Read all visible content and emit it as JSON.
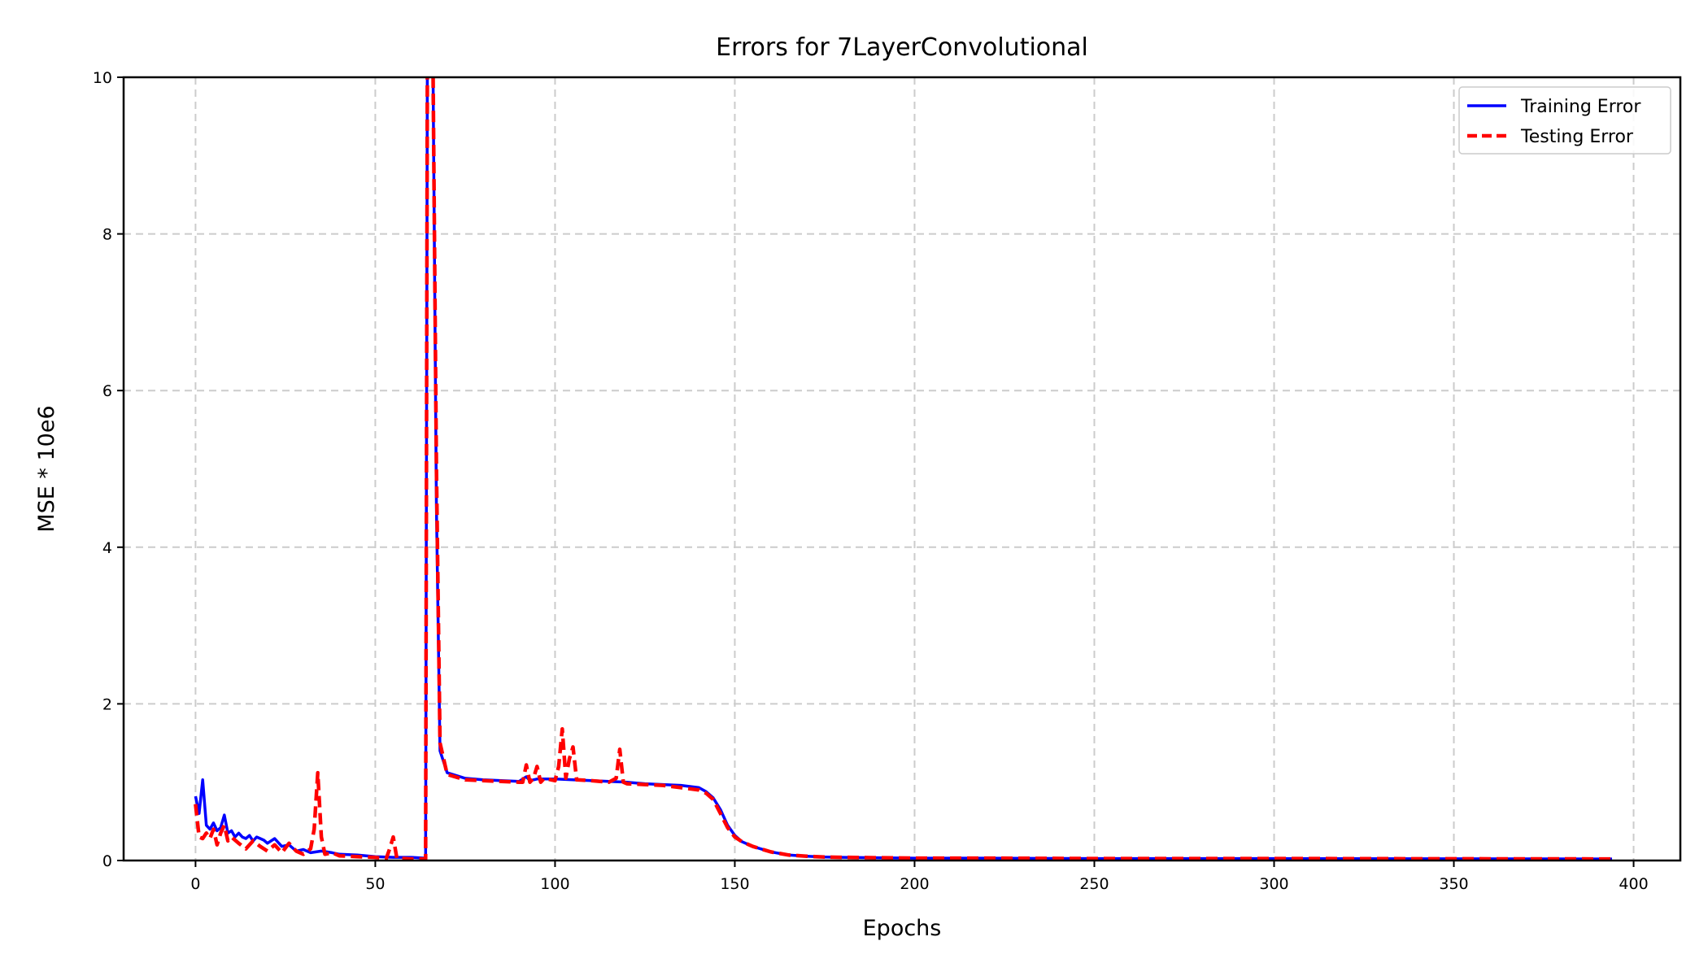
{
  "chart_data": {
    "type": "line",
    "title": "Errors for 7LayerConvolutional",
    "xlabel": "Epochs",
    "ylabel": "MSE * 10e6",
    "xlim": [
      -20,
      413
    ],
    "ylim": [
      0,
      10
    ],
    "xticks": [
      0,
      50,
      100,
      150,
      200,
      250,
      300,
      350,
      400
    ],
    "yticks": [
      0,
      2,
      4,
      6,
      8,
      10
    ],
    "grid": true,
    "legend_position": "top-right",
    "series": [
      {
        "name": "Training Error",
        "color": "#0000ff",
        "style": "solid",
        "x": [
          0,
          1,
          2,
          3,
          4,
          5,
          6,
          7,
          8,
          9,
          10,
          11,
          12,
          13,
          14,
          15,
          16,
          17,
          18,
          19,
          20,
          22,
          24,
          26,
          28,
          30,
          32,
          35,
          38,
          40,
          45,
          50,
          55,
          60,
          64,
          64.5,
          65,
          66,
          67,
          68,
          70,
          75,
          80,
          85,
          90,
          92,
          93,
          95,
          100,
          105,
          110,
          115,
          120,
          125,
          130,
          135,
          140,
          142,
          144,
          146,
          148,
          150,
          152,
          155,
          160,
          165,
          170,
          175,
          180,
          190,
          200,
          220,
          250,
          300,
          350,
          394
        ],
        "y": [
          0.82,
          0.6,
          1.03,
          0.45,
          0.4,
          0.48,
          0.38,
          0.42,
          0.58,
          0.35,
          0.38,
          0.3,
          0.35,
          0.3,
          0.28,
          0.32,
          0.25,
          0.3,
          0.28,
          0.26,
          0.22,
          0.28,
          0.18,
          0.2,
          0.12,
          0.14,
          0.1,
          0.12,
          0.1,
          0.08,
          0.07,
          0.05,
          0.04,
          0.04,
          0.03,
          10.5,
          10.5,
          10.5,
          4.5,
          1.4,
          1.12,
          1.05,
          1.03,
          1.02,
          1.01,
          1.07,
          1.02,
          1.04,
          1.04,
          1.03,
          1.02,
          1.01,
          1.0,
          0.98,
          0.97,
          0.96,
          0.93,
          0.88,
          0.8,
          0.65,
          0.45,
          0.32,
          0.24,
          0.18,
          0.11,
          0.07,
          0.055,
          0.045,
          0.04,
          0.035,
          0.03,
          0.03,
          0.025,
          0.025,
          0.022,
          0.02
        ]
      },
      {
        "name": "Testing Error",
        "color": "#ff0000",
        "style": "dashed",
        "x": [
          0,
          1,
          2,
          3,
          4,
          5,
          6,
          7,
          8,
          9,
          10,
          12,
          14,
          16,
          18,
          20,
          22,
          24,
          26,
          28,
          30,
          32,
          33,
          34,
          35,
          36,
          38,
          40,
          45,
          50,
          53,
          54,
          55,
          56,
          60,
          64,
          64.5,
          65,
          66,
          67,
          68,
          70,
          75,
          80,
          85,
          90,
          91,
          92,
          93,
          94,
          95,
          96,
          97,
          100,
          101,
          102,
          103,
          104,
          105,
          106,
          110,
          115,
          117,
          118,
          119,
          120,
          125,
          130,
          135,
          140,
          142,
          144,
          146,
          148,
          150,
          152,
          155,
          160,
          165,
          170,
          175,
          180,
          190,
          200,
          220,
          250,
          300,
          350,
          394
        ],
        "y": [
          0.72,
          0.3,
          0.28,
          0.35,
          0.28,
          0.4,
          0.2,
          0.35,
          0.45,
          0.25,
          0.3,
          0.22,
          0.15,
          0.25,
          0.18,
          0.12,
          0.2,
          0.1,
          0.22,
          0.12,
          0.08,
          0.15,
          0.4,
          1.12,
          0.3,
          0.08,
          0.1,
          0.06,
          0.05,
          0.04,
          0.02,
          0.15,
          0.3,
          0.03,
          0.02,
          0.02,
          10.5,
          10.5,
          10.5,
          5.0,
          1.5,
          1.1,
          1.03,
          1.02,
          1.01,
          1.0,
          1.0,
          1.22,
          1.0,
          1.05,
          1.2,
          1.0,
          1.05,
          1.02,
          1.2,
          1.68,
          1.05,
          1.3,
          1.45,
          1.03,
          1.02,
          1.0,
          1.05,
          1.42,
          1.0,
          0.98,
          0.97,
          0.96,
          0.93,
          0.9,
          0.86,
          0.78,
          0.6,
          0.42,
          0.3,
          0.24,
          0.18,
          0.11,
          0.07,
          0.055,
          0.045,
          0.04,
          0.035,
          0.03,
          0.03,
          0.025,
          0.025,
          0.022,
          0.02
        ]
      }
    ]
  }
}
